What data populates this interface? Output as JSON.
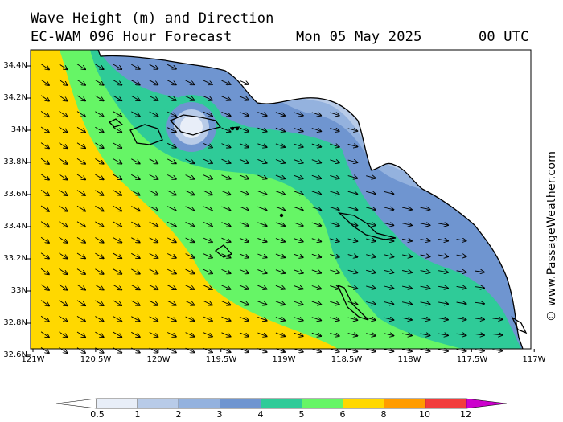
{
  "header": {
    "title": "Wave Height (m) and Direction",
    "model": "EC-WAM 096 Hour Forecast",
    "date": "Mon 05 May 2025",
    "time": "00 UTC"
  },
  "axes": {
    "lat_labels": [
      "34.4N",
      "34.2N",
      "34N",
      "33.8N",
      "33.6N",
      "33.4N",
      "33.2N",
      "33N",
      "32.8N",
      "32.6N"
    ],
    "lon_labels": [
      "121W",
      "120.5W",
      "120W",
      "119.5W",
      "119W",
      "118.5W",
      "118W",
      "117.5W",
      "117W"
    ]
  },
  "colorbar": {
    "labels": [
      "0.5",
      "1",
      "2",
      "3",
      "4",
      "5",
      "6",
      "8",
      "10",
      "12"
    ],
    "colors": [
      "#e8eef8",
      "#b8cbe8",
      "#94b2de",
      "#6f95d0",
      "#2fcb98",
      "#66f566",
      "#ffd800",
      "#ff9c00",
      "#f23c3c",
      "#c00000",
      "#cc00cc"
    ]
  },
  "credit": "© www.PassageWeather.com"
}
